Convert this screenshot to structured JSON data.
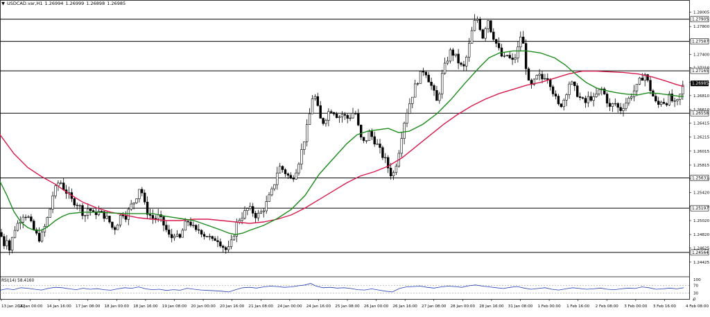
{
  "header": {
    "arrow": "▼",
    "symbol": "USDCAD.var,H1",
    "open": "1.26994",
    "high": "1.26999",
    "low": "1.26898",
    "close": "1.26985"
  },
  "colors": {
    "bull": "#ffffff",
    "bear": "#000000",
    "wick": "#000000",
    "ma_fast": "#1a8a1a",
    "ma_slow": "#d6194b",
    "rsi_line": "#1f3bb0",
    "level_line": "#000000",
    "current_price_bg": "#000000",
    "current_price_text": "#ffffff",
    "grid": "#9a9a9a",
    "axis_text": "#000000"
  },
  "chart_data": {
    "type": "candlestick",
    "symbol": "USDCAD.var",
    "timeframe": "H1",
    "ylim": [
      1.24225,
      1.281
    ],
    "price_axis_ticks": [
      "1.28005",
      "1.27800",
      "1.27605",
      "1.27400",
      "1.27210",
      "1.27005",
      "1.26810",
      "1.26610",
      "1.26415",
      "1.26215",
      "1.26015",
      "1.25815",
      "1.25620",
      "1.25420",
      "1.25220",
      "1.25020",
      "1.24820",
      "1.24625",
      "1.24425"
    ],
    "horizontal_levels": [
      "1.27905",
      "1.27587",
      "1.27165",
      "1.26558",
      "1.25631",
      "1.25197",
      "1.24564"
    ],
    "current_price": "1.26985",
    "time_axis_labels": [
      "13 Jan 2022",
      "14 Jan 00:00",
      "14 Jan 16:00",
      "17 Jan 08:00",
      "18 Jan 00:00",
      "18 Jan 16:00",
      "19 Jan 08:00",
      "20 Jan 00:00",
      "20 Jan 16:00",
      "21 Jan 08:00",
      "24 Jan 00:00",
      "24 Jan 16:00",
      "25 Jan 08:00",
      "26 Jan 00:00",
      "26 Jan 16:00",
      "27 Jan 08:00",
      "28 Jan 00:00",
      "28 Jan 16:00",
      "31 Jan 08:00",
      "1 Feb 00:00",
      "1 Feb 16:00",
      "2 Feb 08:00",
      "3 Feb 00:00",
      "3 Feb 16:00",
      "4 Feb 08:00"
    ],
    "price_path": [
      [
        0,
        1.2485
      ],
      [
        6,
        1.2468
      ],
      [
        10,
        1.2478
      ],
      [
        14,
        1.2459
      ],
      [
        20,
        1.2488
      ],
      [
        28,
        1.2502
      ],
      [
        34,
        1.2512
      ],
      [
        40,
        1.2508
      ],
      [
        46,
        1.2494
      ],
      [
        52,
        1.2482
      ],
      [
        58,
        1.2475
      ],
      [
        66,
        1.2497
      ],
      [
        72,
        1.2518
      ],
      [
        76,
        1.2538
      ],
      [
        82,
        1.2552
      ],
      [
        86,
        1.256
      ],
      [
        92,
        1.2548
      ],
      [
        98,
        1.254
      ],
      [
        104,
        1.253
      ],
      [
        110,
        1.2528
      ],
      [
        116,
        1.252
      ],
      [
        122,
        1.2508
      ],
      [
        128,
        1.2522
      ],
      [
        134,
        1.251
      ],
      [
        140,
        1.2515
      ],
      [
        146,
        1.2512
      ],
      [
        152,
        1.2508
      ],
      [
        158,
        1.25
      ],
      [
        164,
        1.2488
      ],
      [
        170,
        1.25
      ],
      [
        176,
        1.2514
      ],
      [
        182,
        1.2508
      ],
      [
        188,
        1.2522
      ],
      [
        194,
        1.253
      ],
      [
        198,
        1.254
      ],
      [
        202,
        1.2552
      ],
      [
        206,
        1.2538
      ],
      [
        210,
        1.2518
      ],
      [
        216,
        1.251
      ],
      [
        222,
        1.2504
      ],
      [
        228,
        1.2508
      ],
      [
        234,
        1.25
      ],
      [
        240,
        1.2488
      ],
      [
        246,
        1.2475
      ],
      [
        252,
        1.2485
      ],
      [
        258,
        1.2472
      ],
      [
        264,
        1.249
      ],
      [
        270,
        1.2502
      ],
      [
        276,
        1.2497
      ],
      [
        282,
        1.2485
      ],
      [
        288,
        1.249
      ],
      [
        294,
        1.2482
      ],
      [
        300,
        1.248
      ],
      [
        306,
        1.2472
      ],
      [
        312,
        1.2478
      ],
      [
        318,
        1.247
      ],
      [
        324,
        1.2462
      ],
      [
        328,
        1.2458
      ],
      [
        332,
        1.2465
      ],
      [
        336,
        1.2478
      ],
      [
        340,
        1.2495
      ],
      [
        346,
        1.2506
      ],
      [
        352,
        1.2512
      ],
      [
        358,
        1.252
      ],
      [
        364,
        1.2515
      ],
      [
        370,
        1.2508
      ],
      [
        376,
        1.2513
      ],
      [
        382,
        1.2522
      ],
      [
        388,
        1.2535
      ],
      [
        394,
        1.2548
      ],
      [
        398,
        1.2565
      ],
      [
        402,
        1.258
      ],
      [
        408,
        1.2575
      ],
      [
        414,
        1.2568
      ],
      [
        420,
        1.256
      ],
      [
        426,
        1.2572
      ],
      [
        432,
        1.259
      ],
      [
        438,
        1.2615
      ],
      [
        444,
        1.264
      ],
      [
        448,
        1.2662
      ],
      [
        452,
        1.2688
      ],
      [
        456,
        1.2672
      ],
      [
        460,
        1.2655
      ],
      [
        464,
        1.264
      ],
      [
        470,
        1.265
      ],
      [
        476,
        1.2662
      ],
      [
        482,
        1.2658
      ],
      [
        488,
        1.265
      ],
      [
        494,
        1.2655
      ],
      [
        500,
        1.2648
      ],
      [
        506,
        1.2652
      ],
      [
        512,
        1.266
      ],
      [
        516,
        1.264
      ],
      [
        520,
        1.262
      ],
      [
        526,
        1.2612
      ],
      [
        532,
        1.2628
      ],
      [
        538,
        1.262
      ],
      [
        544,
        1.261
      ],
      [
        550,
        1.2598
      ],
      [
        556,
        1.2588
      ],
      [
        562,
        1.2572
      ],
      [
        566,
        1.2565
      ],
      [
        570,
        1.2578
      ],
      [
        574,
        1.2595
      ],
      [
        578,
        1.2618
      ],
      [
        582,
        1.264
      ],
      [
        588,
        1.2662
      ],
      [
        594,
        1.268
      ],
      [
        600,
        1.2698
      ],
      [
        606,
        1.271
      ],
      [
        612,
        1.272
      ],
      [
        618,
        1.2705
      ],
      [
        624,
        1.269
      ],
      [
        630,
        1.2672
      ],
      [
        634,
        1.2688
      ],
      [
        638,
        1.2712
      ],
      [
        644,
        1.273
      ],
      [
        650,
        1.2745
      ],
      [
        656,
        1.2738
      ],
      [
        662,
        1.2728
      ],
      [
        668,
        1.2718
      ],
      [
        674,
        1.274
      ],
      [
        680,
        1.277
      ],
      [
        684,
        1.2785
      ],
      [
        688,
        1.2792
      ],
      [
        692,
        1.278
      ],
      [
        696,
        1.2765
      ],
      [
        700,
        1.278
      ],
      [
        704,
        1.279
      ],
      [
        708,
        1.2775
      ],
      [
        714,
        1.276
      ],
      [
        720,
        1.2745
      ],
      [
        726,
        1.2732
      ],
      [
        732,
        1.274
      ],
      [
        738,
        1.2728
      ],
      [
        744,
        1.2738
      ],
      [
        748,
        1.2752
      ],
      [
        752,
        1.2772
      ],
      [
        756,
        1.2745
      ],
      [
        760,
        1.2712
      ],
      [
        764,
        1.269
      ],
      [
        770,
        1.27
      ],
      [
        776,
        1.271
      ],
      [
        782,
        1.2705
      ],
      [
        788,
        1.2712
      ],
      [
        794,
        1.2698
      ],
      [
        800,
        1.268
      ],
      [
        806,
        1.2665
      ],
      [
        812,
        1.2672
      ],
      [
        818,
        1.269
      ],
      [
        822,
        1.2702
      ],
      [
        826,
        1.2695
      ],
      [
        832,
        1.2685
      ],
      [
        838,
        1.2675
      ],
      [
        844,
        1.267
      ],
      [
        850,
        1.268
      ],
      [
        856,
        1.2675
      ],
      [
        862,
        1.2685
      ],
      [
        868,
        1.269
      ],
      [
        874,
        1.2678
      ],
      [
        880,
        1.2662
      ],
      [
        886,
        1.2672
      ],
      [
        890,
        1.2665
      ],
      [
        894,
        1.266
      ],
      [
        900,
        1.2668
      ],
      [
        906,
        1.2675
      ],
      [
        912,
        1.2685
      ],
      [
        918,
        1.2692
      ],
      [
        924,
        1.2705
      ],
      [
        930,
        1.2712
      ],
      [
        936,
        1.2695
      ],
      [
        942,
        1.268
      ],
      [
        948,
        1.2665
      ],
      [
        954,
        1.2675
      ],
      [
        960,
        1.267
      ],
      [
        966,
        1.268
      ],
      [
        972,
        1.2668
      ],
      [
        978,
        1.2672
      ],
      [
        982,
        1.2685
      ],
      [
        986,
        1.2698
      ]
    ],
    "ma_fast_path": [
      [
        0,
        1.2558
      ],
      [
        10,
        1.2538
      ],
      [
        20,
        1.2515
      ],
      [
        30,
        1.25
      ],
      [
        40,
        1.2492
      ],
      [
        50,
        1.2488
      ],
      [
        60,
        1.2488
      ],
      [
        70,
        1.2494
      ],
      [
        80,
        1.2502
      ],
      [
        90,
        1.2508
      ],
      [
        100,
        1.2512
      ],
      [
        120,
        1.2514
      ],
      [
        140,
        1.2514
      ],
      [
        160,
        1.2513
      ],
      [
        180,
        1.2512
      ],
      [
        200,
        1.2512
      ],
      [
        220,
        1.2512
      ],
      [
        240,
        1.2508
      ],
      [
        260,
        1.2505
      ],
      [
        280,
        1.2502
      ],
      [
        300,
        1.2495
      ],
      [
        320,
        1.2488
      ],
      [
        330,
        1.2484
      ],
      [
        340,
        1.2482
      ],
      [
        350,
        1.2484
      ],
      [
        360,
        1.2488
      ],
      [
        380,
        1.2495
      ],
      [
        400,
        1.2505
      ],
      [
        420,
        1.2518
      ],
      [
        440,
        1.2538
      ],
      [
        460,
        1.2568
      ],
      [
        480,
        1.259
      ],
      [
        500,
        1.2612
      ],
      [
        515,
        1.2625
      ],
      [
        530,
        1.263
      ],
      [
        545,
        1.2632
      ],
      [
        560,
        1.2634
      ],
      [
        575,
        1.2628
      ],
      [
        590,
        1.263
      ],
      [
        610,
        1.264
      ],
      [
        630,
        1.2655
      ],
      [
        650,
        1.2675
      ],
      [
        670,
        1.2698
      ],
      [
        690,
        1.272
      ],
      [
        705,
        1.2735
      ],
      [
        720,
        1.2742
      ],
      [
        740,
        1.2745
      ],
      [
        760,
        1.2745
      ],
      [
        780,
        1.2742
      ],
      [
        800,
        1.2735
      ],
      [
        815,
        1.2725
      ],
      [
        830,
        1.2712
      ],
      [
        845,
        1.27
      ],
      [
        860,
        1.2692
      ],
      [
        875,
        1.2688
      ],
      [
        890,
        1.2685
      ],
      [
        905,
        1.2683
      ],
      [
        920,
        1.2682
      ],
      [
        935,
        1.2685
      ],
      [
        950,
        1.2684
      ],
      [
        965,
        1.2682
      ],
      [
        980,
        1.268
      ],
      [
        986,
        1.268
      ]
    ],
    "ma_slow_path": [
      [
        0,
        1.2625
      ],
      [
        20,
        1.2598
      ],
      [
        40,
        1.2578
      ],
      [
        60,
        1.2565
      ],
      [
        80,
        1.2554
      ],
      [
        100,
        1.254
      ],
      [
        120,
        1.2528
      ],
      [
        140,
        1.252
      ],
      [
        160,
        1.2514
      ],
      [
        180,
        1.251
      ],
      [
        200,
        1.2506
      ],
      [
        220,
        1.2504
      ],
      [
        240,
        1.2502
      ],
      [
        260,
        1.2502
      ],
      [
        280,
        1.2504
      ],
      [
        300,
        1.2504
      ],
      [
        320,
        1.2502
      ],
      [
        340,
        1.25
      ],
      [
        360,
        1.2498
      ],
      [
        380,
        1.25
      ],
      [
        400,
        1.2504
      ],
      [
        420,
        1.251
      ],
      [
        440,
        1.252
      ],
      [
        460,
        1.2532
      ],
      [
        480,
        1.2544
      ],
      [
        500,
        1.2556
      ],
      [
        520,
        1.2566
      ],
      [
        540,
        1.2572
      ],
      [
        560,
        1.258
      ],
      [
        580,
        1.2592
      ],
      [
        600,
        1.2608
      ],
      [
        620,
        1.2624
      ],
      [
        640,
        1.264
      ],
      [
        660,
        1.2654
      ],
      [
        680,
        1.2666
      ],
      [
        700,
        1.2676
      ],
      [
        720,
        1.2684
      ],
      [
        740,
        1.269
      ],
      [
        760,
        1.2696
      ],
      [
        780,
        1.27
      ],
      [
        800,
        1.2706
      ],
      [
        820,
        1.2712
      ],
      [
        840,
        1.2716
      ],
      [
        860,
        1.2716
      ],
      [
        880,
        1.2715
      ],
      [
        900,
        1.2714
      ],
      [
        920,
        1.2712
      ],
      [
        940,
        1.2708
      ],
      [
        960,
        1.2702
      ],
      [
        975,
        1.2697
      ],
      [
        986,
        1.2694
      ]
    ],
    "rsi": {
      "label": "RSI(14) 58.4160",
      "levels": [
        "100",
        "70",
        "30",
        "0"
      ],
      "values": [
        [
          0,
          45
        ],
        [
          10,
          52
        ],
        [
          20,
          48
        ],
        [
          30,
          58
        ],
        [
          40,
          55
        ],
        [
          50,
          50
        ],
        [
          60,
          46
        ],
        [
          70,
          55
        ],
        [
          80,
          60
        ],
        [
          90,
          58
        ],
        [
          100,
          52
        ],
        [
          110,
          48
        ],
        [
          120,
          55
        ],
        [
          130,
          50
        ],
        [
          140,
          53
        ],
        [
          150,
          48
        ],
        [
          160,
          45
        ],
        [
          170,
          52
        ],
        [
          180,
          58
        ],
        [
          190,
          55
        ],
        [
          200,
          62
        ],
        [
          210,
          52
        ],
        [
          220,
          48
        ],
        [
          230,
          50
        ],
        [
          240,
          44
        ],
        [
          250,
          48
        ],
        [
          260,
          45
        ],
        [
          270,
          55
        ],
        [
          280,
          50
        ],
        [
          290,
          46
        ],
        [
          300,
          44
        ],
        [
          310,
          42
        ],
        [
          320,
          40
        ],
        [
          330,
          36
        ],
        [
          340,
          48
        ],
        [
          350,
          58
        ],
        [
          360,
          60
        ],
        [
          370,
          56
        ],
        [
          380,
          62
        ],
        [
          390,
          66
        ],
        [
          400,
          64
        ],
        [
          410,
          60
        ],
        [
          420,
          62
        ],
        [
          430,
          68
        ],
        [
          440,
          72
        ],
        [
          448,
          80
        ],
        [
          456,
          66
        ],
        [
          466,
          58
        ],
        [
          476,
          60
        ],
        [
          486,
          56
        ],
        [
          496,
          58
        ],
        [
          506,
          54
        ],
        [
          516,
          48
        ],
        [
          526,
          46
        ],
        [
          536,
          52
        ],
        [
          546,
          46
        ],
        [
          556,
          40
        ],
        [
          566,
          36
        ],
        [
          576,
          54
        ],
        [
          586,
          62
        ],
        [
          596,
          64
        ],
        [
          606,
          66
        ],
        [
          616,
          60
        ],
        [
          626,
          56
        ],
        [
          636,
          62
        ],
        [
          646,
          66
        ],
        [
          656,
          64
        ],
        [
          666,
          60
        ],
        [
          676,
          68
        ],
        [
          686,
          72
        ],
        [
          696,
          66
        ],
        [
          706,
          62
        ],
        [
          716,
          58
        ],
        [
          726,
          54
        ],
        [
          736,
          60
        ],
        [
          746,
          64
        ],
        [
          756,
          56
        ],
        [
          766,
          50
        ],
        [
          776,
          54
        ],
        [
          786,
          58
        ],
        [
          796,
          50
        ],
        [
          806,
          46
        ],
        [
          816,
          52
        ],
        [
          826,
          58
        ],
        [
          836,
          54
        ],
        [
          846,
          50
        ],
        [
          856,
          52
        ],
        [
          866,
          56
        ],
        [
          876,
          50
        ],
        [
          886,
          48
        ],
        [
          896,
          52
        ],
        [
          906,
          56
        ],
        [
          916,
          54
        ],
        [
          926,
          62
        ],
        [
          936,
          58
        ],
        [
          946,
          50
        ],
        [
          956,
          52
        ],
        [
          966,
          56
        ],
        [
          976,
          52
        ],
        [
          986,
          58
        ]
      ]
    }
  }
}
